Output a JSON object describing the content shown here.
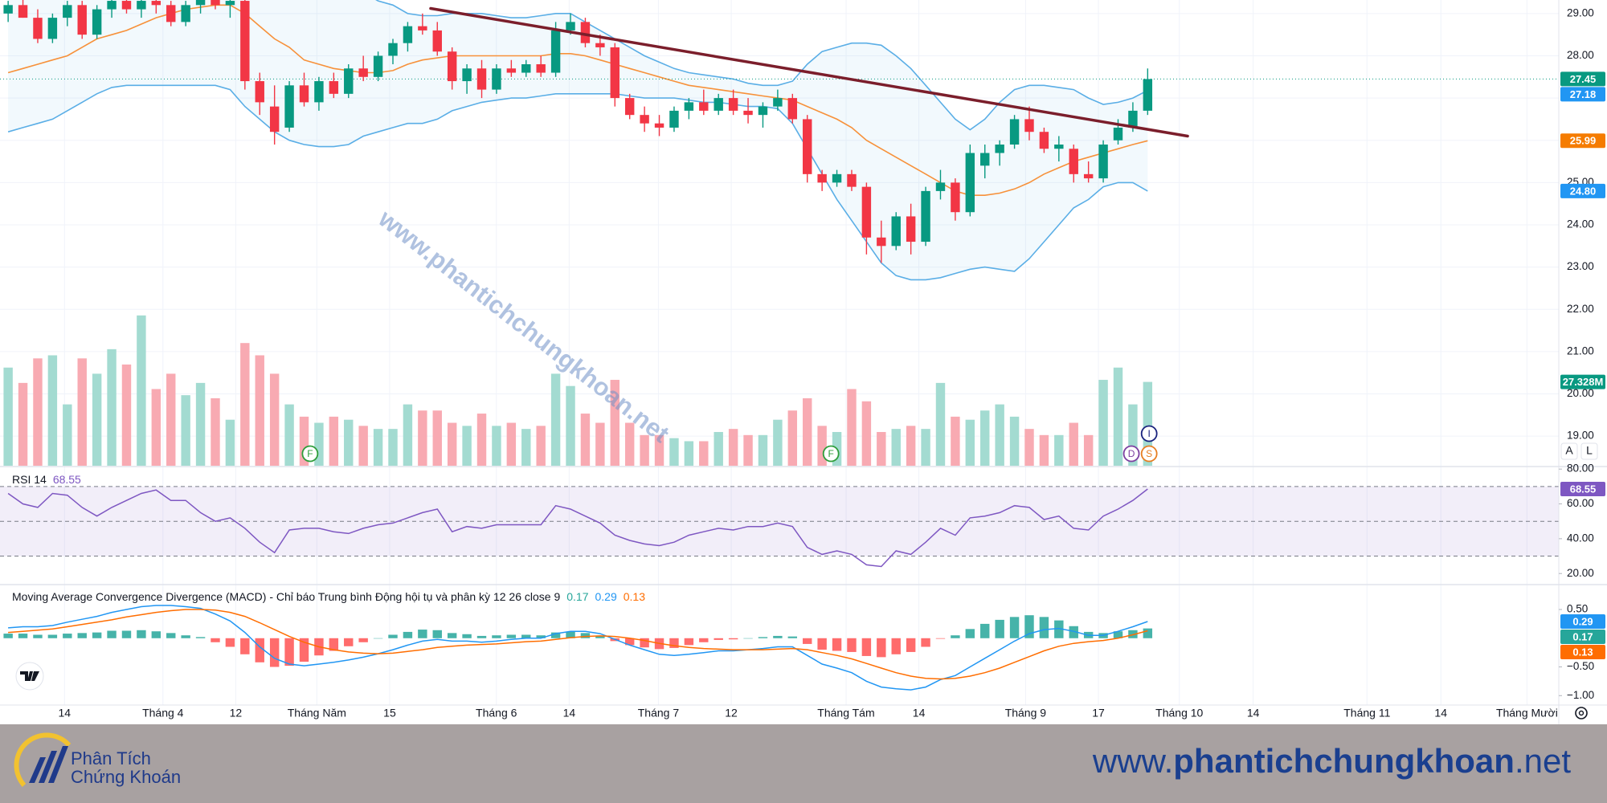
{
  "chart_data": [
    {
      "type": "candlestick",
      "up_color": "#089981",
      "down_color": "#f23645",
      "ylim": [
        18.3,
        29.32
      ],
      "yticks": [
        {
          "value": 29,
          "label": "29.00"
        },
        {
          "value": 28,
          "label": "28.00"
        },
        {
          "value": 27,
          "label": "27.00"
        },
        {
          "value": 26,
          "label": "26.00"
        },
        {
          "value": 25,
          "label": "25.00"
        },
        {
          "value": 24,
          "label": "24.00"
        },
        {
          "value": 23,
          "label": "23.00"
        },
        {
          "value": 22,
          "label": "22.00"
        },
        {
          "value": 21,
          "label": "21.00"
        },
        {
          "value": 20,
          "label": "20.00"
        },
        {
          "value": 19,
          "label": "19.00"
        }
      ],
      "grid": true,
      "open": [
        29.0,
        29.2,
        28.9,
        28.4,
        28.9,
        29.2,
        28.5,
        29.1,
        29.3,
        29.1,
        29.3,
        29.2,
        28.8,
        29.2,
        29.4,
        29.2,
        29.3,
        27.4,
        26.8,
        26.3,
        27.3,
        26.9,
        27.4,
        27.1,
        27.7,
        27.5,
        28.0,
        28.3,
        28.7,
        28.6,
        28.1,
        27.4,
        27.7,
        27.2,
        27.7,
        27.6,
        27.8,
        27.6,
        28.6,
        28.8,
        28.3,
        28.2,
        27.0,
        26.6,
        26.4,
        26.3,
        26.7,
        26.9,
        26.7,
        27.0,
        26.7,
        26.6,
        26.8,
        27.0,
        26.5,
        25.2,
        25.0,
        25.2,
        24.9,
        23.7,
        23.5,
        24.2,
        23.6,
        24.8,
        25.0,
        24.3,
        25.4,
        25.7,
        25.9,
        26.5,
        26.2,
        25.8,
        25.8,
        25.2,
        25.1,
        26.0,
        26.3,
        26.7
      ],
      "high": [
        29.3,
        29.4,
        29.1,
        29.0,
        29.3,
        29.3,
        29.2,
        29.4,
        29.5,
        29.4,
        29.5,
        29.3,
        29.3,
        29.5,
        29.6,
        29.4,
        29.4,
        27.6,
        27.3,
        27.4,
        27.6,
        27.5,
        27.6,
        27.8,
        28.0,
        28.1,
        28.4,
        28.8,
        29.0,
        28.8,
        28.2,
        27.8,
        27.9,
        27.8,
        27.9,
        27.9,
        28.0,
        28.8,
        29.0,
        28.9,
        28.5,
        28.3,
        27.1,
        26.8,
        26.6,
        26.8,
        27.0,
        27.2,
        27.1,
        27.2,
        27.0,
        26.9,
        27.2,
        27.1,
        26.6,
        25.3,
        25.3,
        25.3,
        25.0,
        24.1,
        24.3,
        24.5,
        24.9,
        25.3,
        25.1,
        25.9,
        25.9,
        26.0,
        26.6,
        26.8,
        26.3,
        26.1,
        25.9,
        25.5,
        26.0,
        26.5,
        26.9,
        27.7
      ],
      "low": [
        28.8,
        28.9,
        28.3,
        28.3,
        28.7,
        28.4,
        28.4,
        28.9,
        29.0,
        28.9,
        29.0,
        28.7,
        28.7,
        29.0,
        29.1,
        28.9,
        27.2,
        26.6,
        25.9,
        26.2,
        26.8,
        26.7,
        27.0,
        27.0,
        27.4,
        27.4,
        27.8,
        28.1,
        28.5,
        28.0,
        27.2,
        27.1,
        27.0,
        27.1,
        27.5,
        27.5,
        27.5,
        27.5,
        28.5,
        28.2,
        28.0,
        26.8,
        26.5,
        26.2,
        26.1,
        26.2,
        26.5,
        26.6,
        26.6,
        26.6,
        26.4,
        26.3,
        26.7,
        26.4,
        25.0,
        24.8,
        24.9,
        24.8,
        23.3,
        23.1,
        23.4,
        23.3,
        23.5,
        24.6,
        24.1,
        24.2,
        25.1,
        25.4,
        25.8,
        26.0,
        25.7,
        25.5,
        25.0,
        25.0,
        25.0,
        25.9,
        26.2,
        26.6
      ],
      "close": [
        29.2,
        28.9,
        28.4,
        28.9,
        29.2,
        28.5,
        29.1,
        29.3,
        29.1,
        29.3,
        29.2,
        28.8,
        29.2,
        29.4,
        29.2,
        29.3,
        27.4,
        26.9,
        26.2,
        27.3,
        26.9,
        27.4,
        27.1,
        27.7,
        27.5,
        28.0,
        28.3,
        28.7,
        28.6,
        28.1,
        27.4,
        27.7,
        27.2,
        27.7,
        27.6,
        27.8,
        27.6,
        28.6,
        28.8,
        28.3,
        28.2,
        27.0,
        26.6,
        26.4,
        26.3,
        26.7,
        26.9,
        26.7,
        27.0,
        26.7,
        26.6,
        26.8,
        27.0,
        26.5,
        25.2,
        25.0,
        25.2,
        24.9,
        23.7,
        23.5,
        24.2,
        23.6,
        24.8,
        25.0,
        24.3,
        25.7,
        25.7,
        25.9,
        26.5,
        26.2,
        25.8,
        25.9,
        25.2,
        25.1,
        25.9,
        26.3,
        26.7,
        27.45
      ],
      "bands": {
        "band_color": "#5aaee6",
        "middle_color": "#f7913a",
        "upper": [
          30.2,
          30.2,
          30.1,
          30.1,
          30.0,
          30.0,
          30.0,
          30.0,
          29.9,
          29.9,
          29.9,
          29.9,
          29.8,
          29.8,
          29.8,
          29.8,
          30.0,
          30.2,
          30.3,
          30.3,
          30.2,
          30.0,
          29.8,
          29.6,
          29.5,
          29.3,
          29.2,
          29.0,
          28.95,
          28.95,
          29.0,
          29.0,
          29.0,
          28.95,
          28.9,
          28.9,
          28.95,
          29.0,
          29.0,
          28.8,
          28.6,
          28.4,
          28.2,
          28.0,
          27.85,
          27.7,
          27.6,
          27.55,
          27.5,
          27.45,
          27.35,
          27.3,
          27.3,
          27.4,
          27.8,
          28.1,
          28.2,
          28.3,
          28.3,
          28.25,
          28.0,
          27.7,
          27.3,
          26.9,
          26.5,
          26.25,
          26.5,
          26.9,
          27.2,
          27.3,
          27.3,
          27.25,
          27.2,
          27.0,
          26.85,
          26.9,
          27.0,
          27.18
        ],
        "middle": [
          27.6,
          27.7,
          27.8,
          27.9,
          28.0,
          28.2,
          28.4,
          28.5,
          28.6,
          28.75,
          28.9,
          29.0,
          29.1,
          29.15,
          29.2,
          29.2,
          29.0,
          28.7,
          28.4,
          28.2,
          27.9,
          27.8,
          27.7,
          27.65,
          27.6,
          27.6,
          27.65,
          27.8,
          27.9,
          27.95,
          28.0,
          28.0,
          28.0,
          28.0,
          28.0,
          28.0,
          28.0,
          28.05,
          28.05,
          28.0,
          27.9,
          27.8,
          27.7,
          27.6,
          27.5,
          27.4,
          27.3,
          27.25,
          27.2,
          27.15,
          27.1,
          27.05,
          27.0,
          26.95,
          26.8,
          26.65,
          26.5,
          26.3,
          26.0,
          25.8,
          25.6,
          25.4,
          25.2,
          25.0,
          24.8,
          24.7,
          24.7,
          24.75,
          24.85,
          25.0,
          25.2,
          25.35,
          25.5,
          25.6,
          25.7,
          25.8,
          25.9,
          25.99
        ],
        "lower": [
          26.2,
          26.3,
          26.4,
          26.5,
          26.7,
          26.9,
          27.1,
          27.25,
          27.3,
          27.3,
          27.3,
          27.3,
          27.3,
          27.3,
          27.3,
          27.2,
          26.8,
          26.5,
          26.2,
          26.0,
          25.9,
          25.85,
          25.85,
          25.9,
          26.1,
          26.2,
          26.3,
          26.4,
          26.4,
          26.5,
          26.7,
          26.8,
          26.9,
          26.95,
          27.0,
          27.0,
          27.05,
          27.1,
          27.1,
          27.1,
          27.1,
          27.1,
          27.05,
          27.0,
          27.0,
          27.0,
          26.95,
          26.9,
          26.9,
          26.85,
          26.8,
          26.8,
          26.75,
          26.4,
          25.8,
          25.2,
          24.6,
          24.1,
          23.6,
          23.1,
          22.8,
          22.7,
          22.7,
          22.75,
          22.85,
          22.95,
          23.0,
          22.95,
          22.9,
          23.2,
          23.6,
          24.0,
          24.4,
          24.6,
          24.9,
          25.0,
          25.0,
          24.8
        ]
      },
      "trendline": {
        "x": [
          28.55,
          79.7
        ],
        "y": [
          29.12,
          26.1
        ],
        "color": "#7b1e2b"
      },
      "price_tags": [
        {
          "value": 27.45,
          "label": "27.45",
          "color": "#089981"
        },
        {
          "value": 27.18,
          "label": "27.18",
          "color": "#2196f3"
        },
        {
          "value": 25.99,
          "label": "25.99",
          "color": "#f57c00"
        },
        {
          "value": 24.8,
          "label": "24.80",
          "color": "#2196f3"
        }
      ],
      "watermark": "www.phantichchungkhoan.net",
      "buttons": [
        "A",
        "L"
      ]
    },
    {
      "type": "volume",
      "ylim": [
        0,
        50
      ],
      "values": [
        32,
        27,
        35,
        36,
        20,
        35,
        30,
        38,
        33,
        49,
        25,
        30,
        23,
        27,
        22,
        15,
        40,
        36,
        30,
        20,
        16,
        14,
        16,
        15,
        13,
        12,
        12,
        20,
        18,
        18,
        14,
        13,
        17,
        13,
        14,
        12,
        13,
        30,
        26,
        17,
        14,
        28,
        14,
        10,
        10,
        9,
        8,
        8,
        11,
        12,
        10,
        10,
        15,
        18,
        22,
        13,
        11,
        25,
        21,
        11,
        12,
        13,
        12,
        27,
        16,
        15,
        18,
        20,
        16,
        12,
        10,
        10,
        14,
        10,
        28,
        32,
        20,
        27.328
      ],
      "up_color": "#a3dbd1",
      "down_color": "#f8aab2",
      "tag": {
        "value": 27.328,
        "label": "27.328M",
        "color": "#089981"
      },
      "markers": [
        {
          "x": 20.4,
          "label": "F",
          "color": "#2e9d3a"
        },
        {
          "x": 55.6,
          "label": "F",
          "color": "#2e9d3a"
        },
        {
          "x": 75.9,
          "label": "D",
          "color": "#7b3fa0"
        },
        {
          "x": 77.1,
          "label": "S",
          "color": "#e67e22"
        },
        {
          "x": 77.1,
          "label": "I",
          "color": "#1a237e"
        }
      ]
    },
    {
      "type": "rsi",
      "title": "RSI 14",
      "color": "#7e57c2",
      "ylim": [
        14.1,
        81.0
      ],
      "yticks": [
        {
          "value": 80,
          "label": "80.00"
        },
        {
          "value": 60,
          "label": "60.00"
        },
        {
          "value": 40,
          "label": "40.00"
        },
        {
          "value": 20,
          "label": "20.00"
        }
      ],
      "levels": [
        70,
        50,
        30
      ],
      "values": [
        66,
        60,
        58,
        66,
        65,
        58,
        53,
        58,
        62,
        66,
        68,
        62,
        62,
        55,
        50,
        52,
        46,
        38,
        32,
        45,
        46,
        46,
        44,
        43,
        46,
        48,
        49,
        52,
        55,
        57,
        44,
        47,
        46,
        48,
        48,
        48,
        48,
        59,
        57,
        53,
        49,
        42,
        39,
        37,
        36,
        38,
        42,
        44,
        46,
        45,
        47,
        47,
        49,
        47,
        35,
        31,
        33,
        31,
        25,
        24,
        33,
        31,
        38,
        46,
        42,
        52,
        53,
        55,
        59,
        58,
        51,
        53,
        46,
        45,
        53,
        57,
        62,
        68.55
      ]
    },
    {
      "type": "macd",
      "title": "Moving Average Convergence Divergence (MACD) - Chỉ báo Trung bình Động hội tụ và phân kỳ 12 26 close 9",
      "ylim": [
        -1.15,
        0.92
      ],
      "yticks": [
        {
          "value": 0.5,
          "label": "0.50"
        },
        {
          "value": -0.5,
          "label": "−0.50"
        },
        {
          "value": -1,
          "label": "−1.00"
        }
      ],
      "xlim": [
        -0.55,
        104.78
      ],
      "xticks": [
        {
          "value": 3.81,
          "label": "14"
        },
        {
          "value": 10.46,
          "label": "Tháng 4"
        },
        {
          "value": 15.38,
          "label": "12"
        },
        {
          "value": 20.86,
          "label": "Tháng Năm"
        },
        {
          "value": 25.78,
          "label": "15"
        },
        {
          "value": 32.99,
          "label": "Tháng 6"
        },
        {
          "value": 37.91,
          "label": "14"
        },
        {
          "value": 43.94,
          "label": "Tháng 7"
        },
        {
          "value": 48.86,
          "label": "12"
        },
        {
          "value": 56.62,
          "label": "Tháng Tám"
        },
        {
          "value": 61.54,
          "label": "14"
        },
        {
          "value": 68.75,
          "label": "Tháng 9"
        },
        {
          "value": 73.67,
          "label": "17"
        },
        {
          "value": 79.14,
          "label": "Tháng 10"
        },
        {
          "value": 84.13,
          "label": "14"
        },
        {
          "value": 91.82,
          "label": "Tháng 11"
        },
        {
          "value": 96.81,
          "label": "14"
        },
        {
          "value": 102.63,
          "label": "Tháng Mười"
        }
      ],
      "histogram_colors": [
        "#26a69a",
        "#ff5252"
      ],
      "macd_color": "#2196f3",
      "signal_color": "#ff6d00",
      "histogram": [
        0.08,
        0.08,
        0.06,
        0.06,
        0.08,
        0.09,
        0.1,
        0.13,
        0.13,
        0.14,
        0.12,
        0.09,
        0.05,
        0.02,
        -0.07,
        -0.15,
        -0.28,
        -0.42,
        -0.5,
        -0.48,
        -0.41,
        -0.3,
        -0.22,
        -0.14,
        -0.07,
        0.0,
        0.06,
        0.11,
        0.15,
        0.14,
        0.09,
        0.07,
        0.04,
        0.05,
        0.06,
        0.06,
        0.05,
        0.1,
        0.11,
        0.09,
        0.04,
        -0.05,
        -0.12,
        -0.16,
        -0.19,
        -0.17,
        -0.12,
        -0.07,
        -0.03,
        -0.02,
        0.0,
        0.02,
        0.04,
        0.03,
        -0.1,
        -0.2,
        -0.22,
        -0.24,
        -0.31,
        -0.33,
        -0.28,
        -0.24,
        -0.15,
        -0.01,
        0.05,
        0.16,
        0.25,
        0.32,
        0.37,
        0.4,
        0.37,
        0.31,
        0.21,
        0.11,
        0.09,
        0.12,
        0.14,
        0.17
      ],
      "macd": [
        0.18,
        0.2,
        0.2,
        0.22,
        0.28,
        0.33,
        0.38,
        0.45,
        0.5,
        0.55,
        0.57,
        0.57,
        0.55,
        0.52,
        0.42,
        0.3,
        0.1,
        -0.15,
        -0.35,
        -0.45,
        -0.48,
        -0.45,
        -0.42,
        -0.38,
        -0.33,
        -0.27,
        -0.2,
        -0.12,
        -0.05,
        -0.02,
        -0.05,
        -0.05,
        -0.07,
        -0.05,
        -0.02,
        0.0,
        0.0,
        0.08,
        0.12,
        0.12,
        0.08,
        -0.02,
        -0.12,
        -0.2,
        -0.28,
        -0.3,
        -0.28,
        -0.25,
        -0.22,
        -0.22,
        -0.2,
        -0.18,
        -0.15,
        -0.15,
        -0.3,
        -0.45,
        -0.52,
        -0.6,
        -0.75,
        -0.85,
        -0.88,
        -0.9,
        -0.85,
        -0.72,
        -0.65,
        -0.5,
        -0.35,
        -0.2,
        -0.05,
        0.08,
        0.15,
        0.17,
        0.12,
        0.05,
        0.05,
        0.12,
        0.2,
        0.29
      ],
      "signal": [
        0.1,
        0.12,
        0.14,
        0.16,
        0.2,
        0.24,
        0.28,
        0.32,
        0.37,
        0.41,
        0.45,
        0.48,
        0.5,
        0.5,
        0.49,
        0.45,
        0.38,
        0.27,
        0.15,
        0.03,
        -0.07,
        -0.15,
        -0.2,
        -0.24,
        -0.26,
        -0.27,
        -0.26,
        -0.23,
        -0.2,
        -0.16,
        -0.14,
        -0.12,
        -0.11,
        -0.1,
        -0.08,
        -0.06,
        -0.05,
        -0.02,
        0.01,
        0.03,
        0.04,
        0.03,
        0.0,
        -0.04,
        -0.09,
        -0.13,
        -0.16,
        -0.18,
        -0.19,
        -0.2,
        -0.2,
        -0.2,
        -0.19,
        -0.18,
        -0.2,
        -0.25,
        -0.3,
        -0.36,
        -0.44,
        -0.52,
        -0.6,
        -0.66,
        -0.7,
        -0.71,
        -0.7,
        -0.66,
        -0.6,
        -0.52,
        -0.42,
        -0.32,
        -0.22,
        -0.14,
        -0.09,
        -0.06,
        -0.04,
        0.0,
        0.06,
        0.13
      ]
    }
  ],
  "footer": {
    "logo_line1": "Phân Tích",
    "logo_line2": "Chứng Khoán",
    "site_prefix": "www.",
    "site_name": "phantichchungkhoan",
    "site_suffix": ".net"
  }
}
